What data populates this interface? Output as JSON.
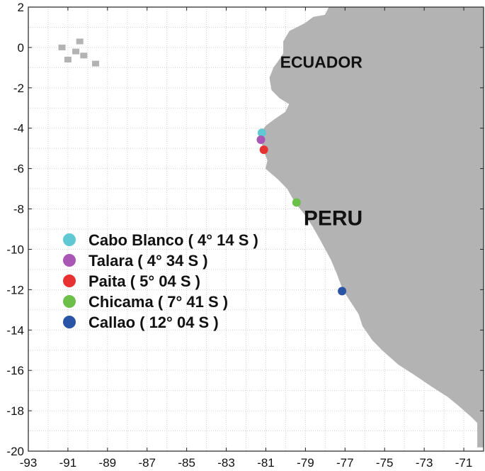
{
  "map": {
    "lon_range": [
      -93,
      -70
    ],
    "lat_range": [
      -20,
      2
    ],
    "x_ticks": [
      -93,
      -91,
      -89,
      -87,
      -85,
      -83,
      -81,
      -79,
      -77,
      -75,
      -73,
      -71
    ],
    "y_ticks": [
      2,
      0,
      -2,
      -4,
      -6,
      -8,
      -10,
      -12,
      -14,
      -16,
      -18,
      -20
    ],
    "grid": "dotted",
    "land_color": "#b3b3b3",
    "coastline": [
      [
        -77.8,
        2.0
      ],
      [
        -78.0,
        1.6
      ],
      [
        -78.6,
        1.5
      ],
      [
        -79.0,
        1.2
      ],
      [
        -79.8,
        0.8
      ],
      [
        -80.1,
        0.3
      ],
      [
        -80.1,
        -0.3
      ],
      [
        -80.3,
        -0.6
      ],
      [
        -80.6,
        -1.0
      ],
      [
        -80.8,
        -1.5
      ],
      [
        -80.7,
        -2.1
      ],
      [
        -80.3,
        -2.5
      ],
      [
        -79.8,
        -2.8
      ],
      [
        -80.0,
        -3.2
      ],
      [
        -80.3,
        -3.4
      ],
      [
        -80.6,
        -3.6
      ],
      [
        -81.0,
        -3.9
      ],
      [
        -81.3,
        -4.3
      ],
      [
        -81.2,
        -4.7
      ],
      [
        -81.1,
        -5.1
      ],
      [
        -80.9,
        -5.6
      ],
      [
        -81.0,
        -6.0
      ],
      [
        -80.4,
        -6.5
      ],
      [
        -79.9,
        -7.0
      ],
      [
        -79.5,
        -7.7
      ],
      [
        -79.0,
        -8.3
      ],
      [
        -78.6,
        -8.9
      ],
      [
        -78.2,
        -9.6
      ],
      [
        -77.7,
        -10.5
      ],
      [
        -77.4,
        -11.2
      ],
      [
        -77.1,
        -12.0
      ],
      [
        -76.7,
        -12.6
      ],
      [
        -76.3,
        -13.2
      ],
      [
        -76.1,
        -13.8
      ],
      [
        -75.6,
        -14.5
      ],
      [
        -75.1,
        -15.0
      ],
      [
        -74.3,
        -15.7
      ],
      [
        -73.5,
        -16.2
      ],
      [
        -72.6,
        -16.8
      ],
      [
        -71.8,
        -17.3
      ],
      [
        -71.3,
        -17.7
      ],
      [
        -70.6,
        -18.3
      ],
      [
        -70.3,
        -18.6
      ],
      [
        -70.3,
        -19.8
      ]
    ],
    "islands": [
      [
        -91.3,
        0.0
      ],
      [
        -90.6,
        -0.2
      ],
      [
        -90.2,
        -0.4
      ],
      [
        -89.6,
        -0.8
      ],
      [
        -91.0,
        -0.6
      ],
      [
        -90.4,
        0.3
      ]
    ],
    "country_labels": [
      {
        "text": "ECUADOR",
        "lon": -78.2,
        "lat": -1.0,
        "size": 23
      },
      {
        "text": "PERU",
        "lon": -77.6,
        "lat": -8.8,
        "size": 30
      }
    ],
    "stations": [
      {
        "name": "Cabo Blanco",
        "lat_label": "4° 14 S",
        "lon": -81.2,
        "lat": -4.23,
        "color": "#5fc8d3"
      },
      {
        "name": "Talara",
        "lat_label": "4° 34 S",
        "lon": -81.25,
        "lat": -4.57,
        "color": "#a857b5"
      },
      {
        "name": "Paita",
        "lat_label": "5° 04 S",
        "lon": -81.1,
        "lat": -5.07,
        "color": "#e83232"
      },
      {
        "name": "Chicama",
        "lat_label": "7° 41 S",
        "lon": -79.45,
        "lat": -7.68,
        "color": "#6cc04a"
      },
      {
        "name": "Callao",
        "lat_label": "12° 04 S",
        "lon": -77.15,
        "lat": -12.07,
        "color": "#2a54a6"
      }
    ]
  }
}
